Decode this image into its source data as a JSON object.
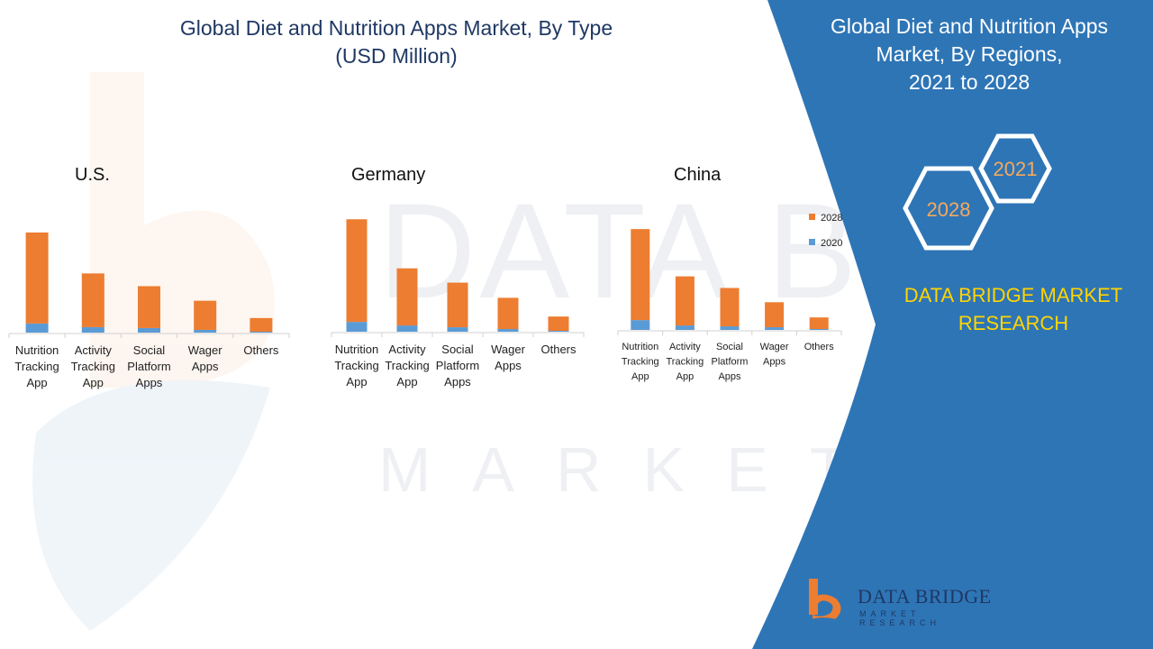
{
  "title": [
    "Global Diet and Nutrition Apps Market, By Type",
    "(USD Million)"
  ],
  "right_panel": {
    "title": [
      "Global Diet and Nutrition Apps",
      "Market, By Regions,",
      "2021 to 2028"
    ],
    "hexagons": [
      "2021",
      "2028"
    ],
    "brand": [
      "DATA BRIDGE MARKET",
      "RESEARCH"
    ]
  },
  "logo": {
    "name": "DATA BRIDGE",
    "tagline": "MARKET RESEARCH"
  },
  "colors": {
    "series_2028": "#ed7d31",
    "series_2020": "#5b9bd5",
    "title": "#1f3864",
    "panel": "#2e75b6",
    "brand": "#ffd400",
    "hex": "#f6a95b"
  },
  "chart_data": [
    {
      "type": "bar",
      "title": "U.S.",
      "stacked": true,
      "categories": [
        [
          "Nutrition",
          "Tracking",
          "App"
        ],
        [
          "Activity",
          "Tracking",
          "App"
        ],
        [
          "Social",
          "Platform",
          "Apps"
        ],
        [
          "Wager",
          "Apps"
        ],
        [
          "Others"
        ]
      ],
      "series": [
        {
          "name": "2020",
          "values": [
            10,
            6,
            5,
            3,
            1
          ]
        },
        {
          "name": "2028",
          "values": [
            100,
            59,
            46,
            32,
            15
          ]
        }
      ]
    },
    {
      "type": "bar",
      "title": "Germany",
      "stacked": true,
      "categories": [
        [
          "Nutrition",
          "Tracking",
          "App"
        ],
        [
          "Activity",
          "Tracking",
          "App"
        ],
        [
          "Social",
          "Platform",
          "Apps"
        ],
        [
          "Wager",
          "Apps"
        ],
        [
          "Others"
        ]
      ],
      "series": [
        {
          "name": "2020",
          "values": [
            11,
            7,
            5,
            3,
            1
          ]
        },
        {
          "name": "2028",
          "values": [
            115,
            64,
            50,
            35,
            16
          ]
        }
      ]
    },
    {
      "type": "bar",
      "title": "China",
      "stacked": true,
      "categories": [
        [
          "Nutrition",
          "Tracking",
          "App"
        ],
        [
          "Activity",
          "Tracking",
          "App"
        ],
        [
          "Social",
          "Platform",
          "Apps"
        ],
        [
          "Wager",
          "Apps"
        ],
        [
          "Others"
        ]
      ],
      "series": [
        {
          "name": "2020",
          "values": [
            11,
            5,
            4,
            3,
            1
          ]
        },
        {
          "name": "2028",
          "values": [
            102,
            55,
            43,
            28,
            13
          ]
        }
      ],
      "legend": [
        "2028",
        "2020"
      ],
      "legend_position": "right"
    }
  ]
}
